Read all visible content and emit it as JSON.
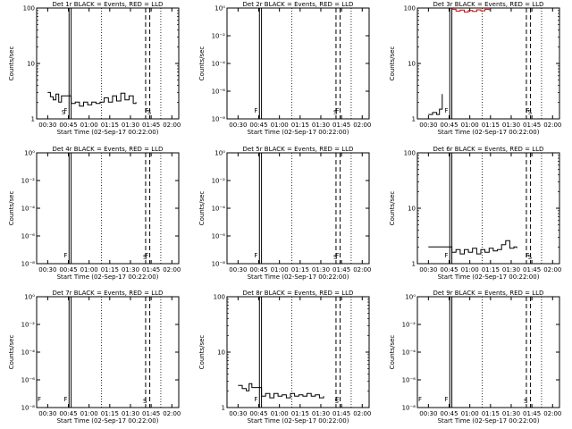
{
  "chart_data": {
    "type": "line",
    "x_ticks": [
      "00:30",
      "00:45",
      "01:00",
      "01:15",
      "01:30",
      "01:45",
      "02:00"
    ],
    "xlabel": "Start Time (02-Sep-17 00:22:00)",
    "ylabel": "Counts/sec",
    "colors": {
      "events": "#000000",
      "lld": "#d00000"
    },
    "panels": [
      {
        "title": "Det 1r BLACK = Events, RED = LLD",
        "y_scale": "log",
        "ylim": [
          1,
          100
        ],
        "y_ticks": [
          "1",
          "10",
          "100"
        ],
        "flare_markers": [
          {
            "x": "00:41",
            "text": "F"
          },
          {
            "x": "01:40",
            "text": "F"
          }
        ],
        "saa_markers": [
          {
            "x": "00:42",
            "text": "S"
          },
          {
            "x": "01:44",
            "text": "S"
          }
        ],
        "events": [
          [
            "00:30",
            3.0
          ],
          [
            "00:32",
            2.5
          ],
          [
            "00:34",
            2.2
          ],
          [
            "00:36",
            2.8
          ],
          [
            "00:38",
            2.0
          ],
          [
            "00:40",
            2.6
          ],
          [
            "00:47",
            1.9
          ],
          [
            "00:50",
            2.0
          ],
          [
            "00:53",
            1.7
          ],
          [
            "00:56",
            2.0
          ],
          [
            "00:59",
            1.8
          ],
          [
            "01:02",
            2.0
          ],
          [
            "01:05",
            1.9
          ],
          [
            "01:08",
            2.0
          ],
          [
            "01:11",
            2.4
          ],
          [
            "01:14",
            2.0
          ],
          [
            "01:17",
            2.6
          ],
          [
            "01:20",
            2.1
          ],
          [
            "01:23",
            2.9
          ],
          [
            "01:26",
            2.2
          ],
          [
            "01:29",
            2.6
          ],
          [
            "01:32",
            1.9
          ],
          [
            "01:34",
            2.0
          ]
        ],
        "lld": []
      },
      {
        "title": "Det 2r BLACK = Events, RED = LLD",
        "y_scale": "log",
        "ylim": [
          1e-08,
          1
        ],
        "y_ticks": [
          "10⁻⁸",
          "10⁻⁶",
          "10⁻⁴",
          "10⁻²",
          "10⁰"
        ],
        "flare_markers": [
          {
            "x": "00:41",
            "text": "F"
          },
          {
            "x": "01:40",
            "text": "F"
          }
        ],
        "saa_markers": [
          {
            "x": "01:41",
            "text": "S"
          }
        ],
        "events": [],
        "lld": []
      },
      {
        "title": "Det 3r BLACK = Events, RED = LLD",
        "y_scale": "log",
        "ylim": [
          1,
          100
        ],
        "y_ticks": [
          "1",
          "10",
          "100"
        ],
        "flare_markers": [
          {
            "x": "00:41",
            "text": "F"
          },
          {
            "x": "01:40",
            "text": "F"
          }
        ],
        "saa_markers": [
          {
            "x": "01:44",
            "text": "S"
          }
        ],
        "events": [
          [
            "00:30",
            1.2
          ],
          [
            "00:33",
            1.3
          ],
          [
            "00:36",
            1.2
          ],
          [
            "00:38",
            1.5
          ],
          [
            "00:40",
            2.8
          ]
        ],
        "lld": [
          [
            "00:47",
            95
          ],
          [
            "00:50",
            88
          ],
          [
            "00:53",
            92
          ],
          [
            "00:56",
            85
          ],
          [
            "00:59",
            90
          ],
          [
            "01:02",
            87
          ],
          [
            "01:05",
            93
          ],
          [
            "01:08",
            89
          ],
          [
            "01:11",
            95
          ],
          [
            "01:14",
            91
          ]
        ]
      },
      {
        "title": "Det 4r BLACK = Events, RED = LLD",
        "y_scale": "log",
        "ylim": [
          1e-08,
          1
        ],
        "y_ticks": [
          "10⁻⁸",
          "10⁻⁶",
          "10⁻⁴",
          "10⁻²",
          "10⁰"
        ],
        "flare_markers": [
          {
            "x": "00:41",
            "text": "F"
          },
          {
            "x": "01:40",
            "text": "F"
          }
        ],
        "saa_markers": [
          {
            "x": "01:41",
            "text": "S"
          }
        ],
        "events": [],
        "lld": []
      },
      {
        "title": "Det 5r BLACK = Events, RED = LLD",
        "y_scale": "log",
        "ylim": [
          1e-08,
          1
        ],
        "y_ticks": [
          "10⁻⁸",
          "10⁻⁶",
          "10⁻⁴",
          "10⁻²",
          "10⁰"
        ],
        "flare_markers": [
          {
            "x": "00:41",
            "text": "F"
          },
          {
            "x": "01:40",
            "text": "F"
          }
        ],
        "saa_markers": [
          {
            "x": "01:41",
            "text": "S"
          }
        ],
        "events": [],
        "lld": []
      },
      {
        "title": "Det 6r BLACK = Events, RED = LLD",
        "y_scale": "log",
        "ylim": [
          1,
          100
        ],
        "y_ticks": [
          "1",
          "10",
          "100"
        ],
        "flare_markers": [
          {
            "x": "00:41",
            "text": "F"
          },
          {
            "x": "01:40",
            "text": "F"
          }
        ],
        "saa_markers": [
          {
            "x": "01:44",
            "text": "S"
          }
        ],
        "events": [
          [
            "00:30",
            2.0
          ],
          [
            "00:35",
            2.0
          ],
          [
            "00:40",
            2.0
          ],
          [
            "00:47",
            1.6
          ],
          [
            "00:50",
            1.8
          ],
          [
            "00:53",
            1.5
          ],
          [
            "00:56",
            1.8
          ],
          [
            "00:59",
            1.6
          ],
          [
            "01:02",
            1.9
          ],
          [
            "01:05",
            1.5
          ],
          [
            "01:08",
            1.8
          ],
          [
            "01:11",
            1.6
          ],
          [
            "01:14",
            1.9
          ],
          [
            "01:17",
            1.7
          ],
          [
            "01:20",
            1.8
          ],
          [
            "01:23",
            2.2
          ],
          [
            "01:26",
            2.6
          ],
          [
            "01:29",
            1.9
          ],
          [
            "01:32",
            2.0
          ],
          [
            "01:34",
            1.9
          ]
        ],
        "lld": []
      },
      {
        "title": "Det 7r BLACK = Events, RED = LLD",
        "y_scale": "log",
        "ylim": [
          1e-08,
          1
        ],
        "y_ticks": [
          "10⁻⁸",
          "10⁻⁶",
          "10⁻⁴",
          "10⁻²",
          "10⁰"
        ],
        "flare_markers": [
          {
            "x": "00:22",
            "text": "F"
          },
          {
            "x": "00:41",
            "text": "F"
          }
        ],
        "saa_markers": [
          {
            "x": "01:41",
            "text": "S"
          }
        ],
        "events": [],
        "lld": []
      },
      {
        "title": "Det 8r BLACK = Events, RED = LLD",
        "y_scale": "log",
        "ylim": [
          1,
          100
        ],
        "y_ticks": [
          "1",
          "10",
          "100"
        ],
        "flare_markers": [
          {
            "x": "00:41",
            "text": "F"
          },
          {
            "x": "01:40",
            "text": "F"
          }
        ],
        "saa_markers": [
          {
            "x": "01:42",
            "text": "S"
          }
        ],
        "events": [
          [
            "00:30",
            2.5
          ],
          [
            "00:33",
            2.2
          ],
          [
            "00:36",
            2.0
          ],
          [
            "00:38",
            2.7
          ],
          [
            "00:40",
            2.3
          ],
          [
            "00:47",
            1.6
          ],
          [
            "00:50",
            1.8
          ],
          [
            "00:53",
            1.5
          ],
          [
            "00:56",
            1.8
          ],
          [
            "00:59",
            1.6
          ],
          [
            "01:02",
            1.7
          ],
          [
            "01:05",
            1.5
          ],
          [
            "01:08",
            1.8
          ],
          [
            "01:11",
            1.6
          ],
          [
            "01:14",
            1.7
          ],
          [
            "01:17",
            1.6
          ],
          [
            "01:20",
            1.8
          ],
          [
            "01:23",
            1.6
          ],
          [
            "01:26",
            1.7
          ],
          [
            "01:29",
            1.5
          ],
          [
            "01:32",
            1.6
          ]
        ],
        "lld": []
      },
      {
        "title": "Det 9r BLACK = Events, RED = LLD",
        "y_scale": "log",
        "ylim": [
          1e-08,
          1
        ],
        "y_ticks": [
          "10⁻⁸",
          "10⁻⁶",
          "10⁻⁴",
          "10⁻²",
          "10⁰"
        ],
        "flare_markers": [
          {
            "x": "00:22",
            "text": "F"
          },
          {
            "x": "00:41",
            "text": "F"
          }
        ],
        "saa_markers": [
          {
            "x": "01:41",
            "text": "S"
          }
        ],
        "events": [],
        "lld": []
      }
    ]
  }
}
